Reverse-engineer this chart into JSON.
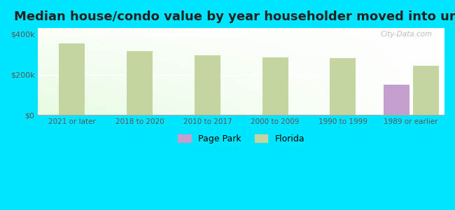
{
  "title": "Median house/condo value by year householder moved into unit",
  "categories": [
    "2021 or later",
    "2018 to 2020",
    "2010 to 2017",
    "2000 to 2009",
    "1990 to 1999",
    "1989 or earlier"
  ],
  "florida_values": [
    355000,
    315000,
    295000,
    285000,
    280000,
    245000
  ],
  "page_park_values": [
    null,
    null,
    null,
    null,
    null,
    150000
  ],
  "florida_color": "#c5d5a0",
  "page_park_color": "#c49fcd",
  "background_outer": "#00e5ff",
  "yticks": [
    0,
    200000,
    400000
  ],
  "ytick_labels": [
    "$0",
    "$200k",
    "$400k"
  ],
  "ylim": [
    0,
    430000
  ],
  "bar_width": 0.38,
  "watermark": "City-Data.com",
  "title_fontsize": 13
}
